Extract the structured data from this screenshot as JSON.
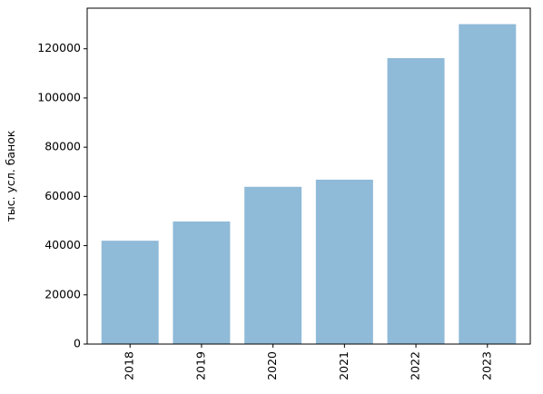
{
  "chart_data": {
    "type": "bar",
    "ylabel": "тыс. усл. банок",
    "categories": [
      "2018",
      "2019",
      "2020",
      "2021",
      "2022",
      "2023"
    ],
    "values": [
      42000,
      49800,
      63900,
      66800,
      116200,
      130000
    ],
    "color": "#8fbad8",
    "ylim": [
      0,
      136500
    ],
    "yticks": [
      0,
      20000,
      40000,
      60000,
      80000,
      100000,
      120000
    ],
    "x_label_rotation": 90,
    "grid": false
  }
}
